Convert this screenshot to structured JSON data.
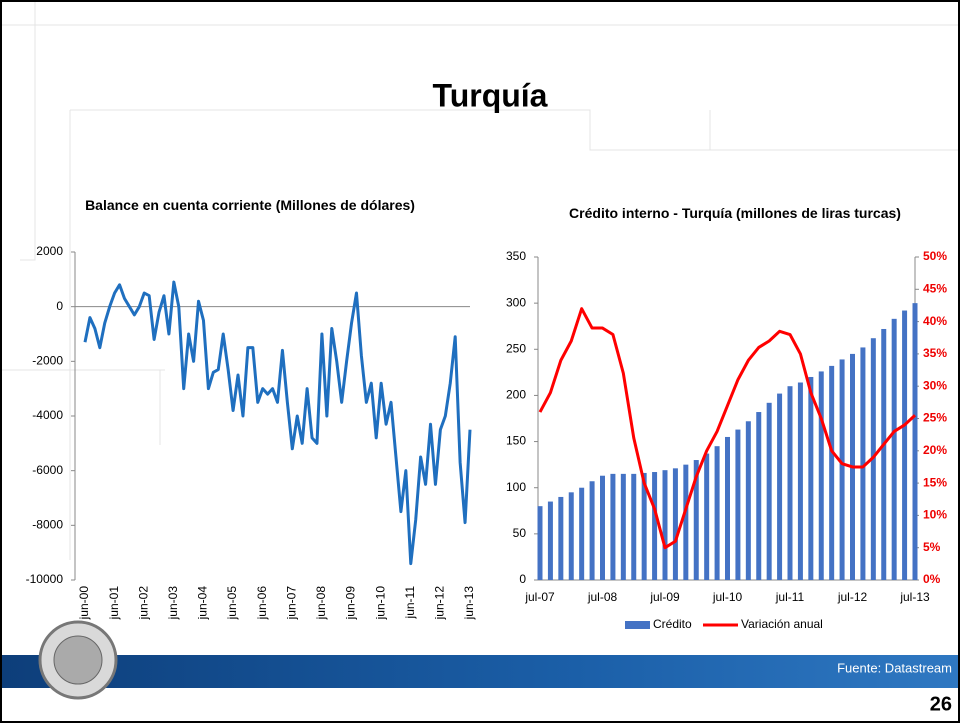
{
  "slide": {
    "title": "Turquía",
    "source": "Fuente: Datastream",
    "page": "26"
  },
  "chart_data": [
    {
      "type": "line",
      "title": "Balance en cuenta corriente (Millones de dólares)",
      "color": "#1f6fbf",
      "categories": [
        "jun-00",
        null,
        null,
        null,
        null,
        null,
        "jun-01",
        null,
        null,
        null,
        null,
        null,
        "jun-02",
        null,
        null,
        null,
        null,
        null,
        "jun-03",
        null,
        null,
        null,
        null,
        null,
        "jun-04",
        null,
        null,
        null,
        null,
        null,
        "jun-05",
        null,
        null,
        null,
        null,
        null,
        "jun-06",
        null,
        null,
        null,
        null,
        null,
        "jun-07",
        null,
        null,
        null,
        null,
        null,
        "jun-08",
        null,
        null,
        null,
        null,
        null,
        "jun-09",
        null,
        null,
        null,
        null,
        null,
        "jun-10",
        null,
        null,
        null,
        null,
        null,
        "jun-11",
        null,
        null,
        null,
        null,
        null,
        "jun-12",
        null,
        null,
        null,
        null,
        null,
        "jun-13"
      ],
      "values": [
        -1300,
        -400,
        -800,
        -1500,
        -600,
        0,
        500,
        800,
        300,
        0,
        -300,
        0,
        500,
        400,
        -1200,
        -200,
        400,
        -1000,
        900,
        0,
        -3000,
        -1000,
        -2000,
        200,
        -500,
        -3000,
        -2400,
        -2300,
        -1000,
        -2300,
        -3800,
        -2500,
        -4000,
        -1500,
        -1500,
        -3500,
        -3000,
        -3200,
        -3000,
        -3500,
        -1600,
        -3500,
        -5200,
        -4000,
        -5000,
        -3000,
        -4800,
        -5000,
        -1000,
        -4000,
        -800,
        -2000,
        -3500,
        -2000,
        -600,
        500,
        -1800,
        -3500,
        -2800,
        -4800,
        -2800,
        -4300,
        -3500,
        -5500,
        -7500,
        -6000,
        -9400,
        -7800,
        -5500,
        -6500,
        -4300,
        -6500,
        -4500,
        -4000,
        -2800,
        -1100,
        -5700,
        -7900,
        -4500
      ],
      "ylim": [
        -10000,
        2000
      ],
      "yticks": [
        -10000,
        -8000,
        -6000,
        -4000,
        -2000,
        0,
        2000
      ]
    },
    {
      "type": "bar",
      "title": "Crédito interno - Turquía (millones de liras turcas)",
      "categories": [
        "jul-07",
        null,
        null,
        null,
        null,
        null,
        "jul-08",
        null,
        null,
        null,
        null,
        null,
        "jul-09",
        null,
        null,
        null,
        null,
        null,
        "jul-10",
        null,
        null,
        null,
        null,
        null,
        "jul-11",
        null,
        null,
        null,
        null,
        null,
        "jul-12",
        null,
        null,
        null,
        null,
        null,
        "jul-13"
      ],
      "series": [
        {
          "name": "Crédito",
          "type": "bar",
          "color": "#4472c4",
          "values": [
            80,
            85,
            90,
            95,
            100,
            107,
            113,
            115,
            115,
            115,
            116,
            117,
            119,
            121,
            125,
            130,
            137,
            145,
            155,
            163,
            172,
            182,
            192,
            202,
            210,
            214,
            220,
            226,
            232,
            239,
            245,
            252,
            262,
            272,
            283,
            292,
            300
          ]
        },
        {
          "name": "Variación anual",
          "type": "line",
          "axis": "y2",
          "color": "#ff0000",
          "values": [
            26,
            29,
            34,
            37,
            42,
            39,
            39,
            38,
            32,
            22,
            15,
            11,
            5,
            6,
            11,
            16,
            20,
            23,
            27,
            31,
            34,
            36,
            37,
            38.5,
            38,
            35,
            29,
            25,
            20,
            18,
            17.5,
            17.5,
            19,
            21,
            23,
            24,
            25.5
          ]
        }
      ],
      "ylim": [
        0,
        350
      ],
      "yticks": [
        0,
        50,
        100,
        150,
        200,
        250,
        300,
        350
      ],
      "y2lim": [
        0,
        50
      ],
      "y2ticks": [
        {
          "value": 0,
          "label": "0%"
        },
        {
          "value": 5,
          "label": "5%"
        },
        {
          "value": 10,
          "label": "10%"
        },
        {
          "value": 15,
          "label": "15%"
        },
        {
          "value": 20,
          "label": "20%"
        },
        {
          "value": 25,
          "label": "25%"
        },
        {
          "value": 30,
          "label": "30%"
        },
        {
          "value": 35,
          "label": "35%"
        },
        {
          "value": 40,
          "label": "40%"
        },
        {
          "value": 45,
          "label": "45%"
        },
        {
          "value": 50,
          "label": "50%"
        }
      ],
      "legend": "bottom"
    }
  ]
}
